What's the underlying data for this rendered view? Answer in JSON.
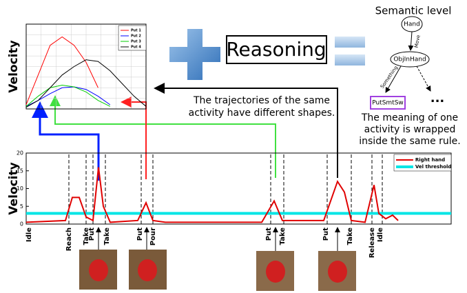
{
  "chart_data": [
    {
      "type": "line",
      "y_label": "Velocity",
      "x": [
        0,
        1,
        2,
        3,
        4,
        5,
        6,
        7,
        8,
        9,
        10
      ],
      "xlim": [
        0,
        10
      ],
      "ylim": [
        0,
        10
      ],
      "series": [
        {
          "name": "Put 1",
          "color": "#ff0000",
          "values": [
            0.5,
            4,
            7.5,
            8.5,
            7.5,
            5.5,
            2.5,
            null,
            null,
            null,
            null
          ]
        },
        {
          "name": "Put 2",
          "color": "#0000ff",
          "values": [
            0.3,
            1,
            1.8,
            2.5,
            2.6,
            2.3,
            1.5,
            0.5,
            null,
            null,
            null
          ]
        },
        {
          "name": "Put 3",
          "color": "#00cc00",
          "values": [
            0.3,
            1.5,
            2.5,
            2.8,
            2.6,
            2,
            1,
            0.3,
            null,
            null,
            null
          ]
        },
        {
          "name": "Put 4",
          "color": "#000000",
          "values": [
            0.2,
            1,
            2.5,
            4,
            5,
            5.8,
            5.6,
            4.5,
            3,
            1.5,
            0.3
          ]
        }
      ]
    },
    {
      "type": "line",
      "y_label": "Velocity",
      "x": [
        0,
        57,
        67,
        77,
        87,
        97,
        105,
        112,
        122,
        162,
        174,
        184,
        202,
        342,
        360,
        372,
        432,
        452,
        462,
        472,
        492,
        505,
        512,
        522,
        532,
        540
      ],
      "xlim": [
        0,
        617
      ],
      "ylim": [
        0,
        20
      ],
      "yticks": [
        0,
        5,
        10,
        15,
        20
      ],
      "series": [
        {
          "name": "Right hand",
          "color": "#e00000",
          "values": [
            0.5,
            1,
            7.5,
            7.5,
            2,
            1,
            16,
            5,
            0.5,
            1,
            6,
            1,
            0.5,
            0.5,
            6.5,
            1,
            1,
            12,
            9,
            1,
            0.5,
            11,
            3,
            1.5,
            2.5,
            1
          ]
        }
      ],
      "reference_lines": [
        {
          "name": "Vel threshold",
          "color": "#00e5e5",
          "value": 3
        }
      ],
      "event_lines": [
        62,
        87,
        97,
        115,
        167,
        184,
        355,
        374,
        437,
        472,
        502,
        517
      ],
      "event_labels": [
        {
          "label": "Idle",
          "x": 4
        },
        {
          "label": "Reach",
          "x": 62
        },
        {
          "label": "Take",
          "x": 87
        },
        {
          "label": "Put",
          "x": 95
        },
        {
          "label": "Take",
          "x": 117
        },
        {
          "label": "Put",
          "x": 165
        },
        {
          "label": "Pour",
          "x": 184
        },
        {
          "label": "Put",
          "x": 352
        },
        {
          "label": "Take",
          "x": 372
        },
        {
          "label": "Put",
          "x": 435
        },
        {
          "label": "Take",
          "x": 470
        },
        {
          "label": "Release",
          "x": 502
        },
        {
          "label": "Idle",
          "x": 514
        }
      ]
    }
  ],
  "reasoning": "Reasoning",
  "semantic": {
    "title": "Semantic level",
    "nodes": [
      "Hand",
      "ObjInHand",
      "PutSmtSw"
    ],
    "edges": [
      "Move",
      "Something"
    ],
    "ellipsis": "..."
  },
  "note_trajectories": [
    "The trajectories of the same",
    "activity have different shapes."
  ],
  "note_meaning": [
    "The meaning of one",
    "activity is wrapped",
    "inside the same rule."
  ]
}
